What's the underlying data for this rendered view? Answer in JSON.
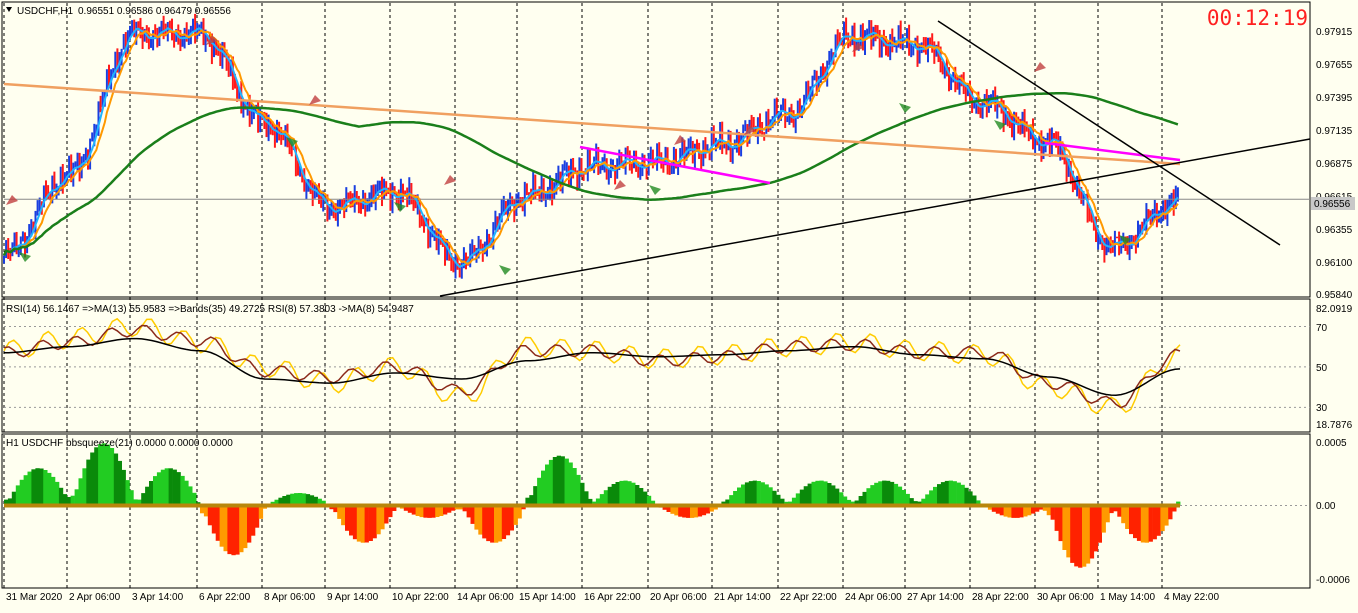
{
  "symbol_header": {
    "menu_arrow": "triangle-down-icon",
    "title": "USDCHF,H1",
    "ohlc": "0.96551 0.96586 0.96479 0.96556"
  },
  "countdown": "00:12:19",
  "price_axis": {
    "labels": [
      "0.97915",
      "0.97655",
      "0.97395",
      "0.97135",
      "0.96875",
      "0.96615",
      "0.96355",
      "0.96100",
      "0.95840"
    ],
    "current_price": "0.96556"
  },
  "rsi_panel": {
    "header": "RSI(14) 56.1467  =>MA(13) 55.9583  =>Bands(35) 49.2725  RSI(8) 57.3803  ->MA(8) 54.9487",
    "labels": [
      "82.0919",
      "70",
      "50",
      "30",
      "18.7876"
    ]
  },
  "squeeze_panel": {
    "header": "H1 USDCHF bbsqueeze(21) 0.0000 0.0000 0.0000",
    "labels": [
      "0.0005",
      "0.00",
      "-0.0006"
    ]
  },
  "time_axis": [
    "31 Mar 2020",
    "2 Apr 06:00",
    "3 Apr 14:00",
    "6 Apr 22:00",
    "8 Apr 06:00",
    "9 Apr 14:00",
    "10 Apr 22:00",
    "14 Apr 06:00",
    "15 Apr 14:00",
    "16 Apr 22:00",
    "20 Apr 06:00",
    "21 Apr 14:00",
    "22 Apr 22:00",
    "24 Apr 06:00",
    "27 Apr 14:00",
    "28 Apr 22:00",
    "30 Apr 06:00",
    "1 May 14:00",
    "4 May 22:00"
  ],
  "colors": {
    "background": "#fffff0",
    "bull_bar": "#1a3fe0",
    "bear_bar": "#ff1a1a",
    "ma_orange": "#ff9900",
    "ma_cyan": "#20b4ff",
    "ma_green_long": "#1a7f1a",
    "trend_salmon": "#f0a060",
    "trend_magenta": "#ff00ff",
    "rsi_yellow": "#ffcc00",
    "rsi_brown": "#8b2a1a",
    "squeeze_green": "#22cc22",
    "squeeze_darkgreen": "#0a8a0a",
    "squeeze_red": "#ff2200",
    "squeeze_orange": "#ff9900",
    "countdown": "#ff2020"
  },
  "chart_data": [
    {
      "type": "candlestick",
      "title": "USDCHF,H1",
      "ylim": [
        0.9584,
        0.98
      ],
      "x": [
        "31 Mar 2020",
        "2 Apr 06:00",
        "3 Apr 14:00",
        "6 Apr 22:00",
        "8 Apr 06:00",
        "9 Apr 14:00",
        "10 Apr 22:00",
        "14 Apr 06:00",
        "15 Apr 14:00",
        "16 Apr 22:00",
        "20 Apr 06:00",
        "21 Apr 14:00",
        "22 Apr 22:00",
        "24 Apr 06:00",
        "27 Apr 14:00",
        "28 Apr 22:00",
        "30 Apr 06:00",
        "1 May 14:00",
        "4 May 22:00"
      ],
      "close": [
        0.9614,
        0.9674,
        0.9778,
        0.9778,
        0.9712,
        0.965,
        0.9661,
        0.9609,
        0.9658,
        0.968,
        0.9683,
        0.9696,
        0.9718,
        0.9776,
        0.977,
        0.9727,
        0.9698,
        0.962,
        0.9654
      ],
      "current_price": 0.96556
    },
    {
      "type": "line",
      "title": "RSI(14)",
      "ylim": [
        18.7876,
        82.0919
      ],
      "levels": [
        70,
        50,
        30
      ],
      "series": [
        {
          "name": "RSI(14)",
          "values": [
            58,
            64,
            70,
            62,
            50,
            42,
            50,
            35,
            60,
            58,
            54,
            56,
            60,
            62,
            58,
            56,
            40,
            30,
            56
          ]
        },
        {
          "name": "MA(13)",
          "values": [
            57,
            62,
            68,
            63,
            48,
            45,
            50,
            38,
            58,
            58,
            53,
            55,
            60,
            61,
            57,
            57,
            42,
            32,
            56
          ]
        },
        {
          "name": "Bands(35)",
          "values": [
            57,
            60,
            64,
            58,
            44,
            42,
            47,
            44,
            53,
            57,
            55,
            56,
            58,
            60,
            56,
            54,
            45,
            36,
            49
          ]
        }
      ]
    },
    {
      "type": "bar",
      "title": "bbsqueeze(21)",
      "ylim": [
        -0.0006,
        0.0005
      ],
      "x": [
        "31 Mar 2020",
        "2 Apr 06:00",
        "3 Apr 14:00",
        "6 Apr 22:00",
        "8 Apr 06:00",
        "9 Apr 14:00",
        "10 Apr 22:00",
        "14 Apr 06:00",
        "15 Apr 14:00",
        "16 Apr 22:00",
        "20 Apr 06:00",
        "21 Apr 14:00",
        "22 Apr 22:00",
        "24 Apr 06:00",
        "27 Apr 14:00",
        "28 Apr 22:00",
        "30 Apr 06:00",
        "1 May 14:00",
        "4 May 22:00"
      ],
      "values": [
        0.0003,
        0.0005,
        0.0003,
        -0.0004,
        0.0001,
        -0.0003,
        -0.0001,
        -0.0003,
        0.0004,
        0.0002,
        -0.0001,
        0.0002,
        0.0002,
        0.0002,
        0.0002,
        -0.0001,
        -0.0005,
        -0.0003,
        0.0002
      ]
    }
  ]
}
